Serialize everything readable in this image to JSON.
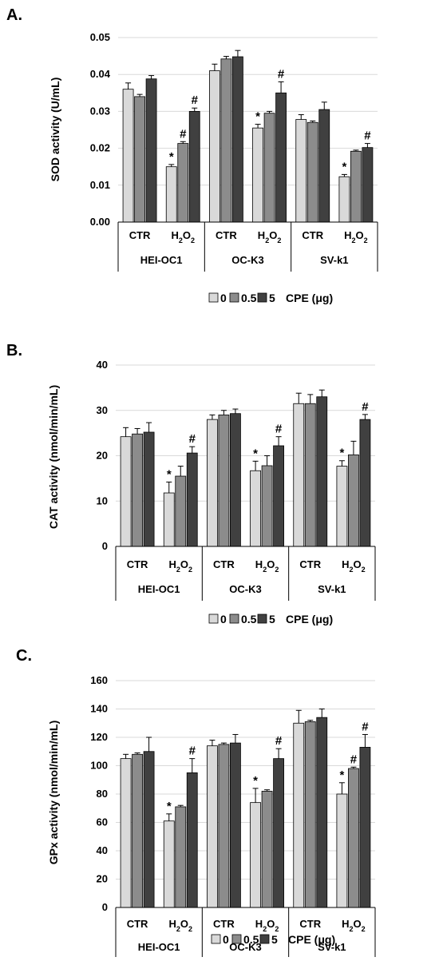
{
  "legend": {
    "entries": [
      "0",
      "0.5",
      "5"
    ],
    "unit": "CPE (μg)",
    "colors": [
      "#d9d9d9",
      "#8c8c8c",
      "#404040"
    ]
  },
  "chart_data": [
    {
      "type": "bar",
      "panel_label": "A.",
      "ylabel": "SOD activity (U/mL)",
      "ylim": [
        0,
        0.05
      ],
      "yticks": [
        "0.00",
        "0.01",
        "0.02",
        "0.03",
        "0.04",
        "0.05"
      ],
      "groups": [
        "HEI-OC1",
        "OC-K3",
        "SV-k1"
      ],
      "conditions": [
        "CTR",
        "H2O2"
      ],
      "series": [
        {
          "values": [
            0.036,
            0.015,
            0.041,
            0.0255,
            0.0278,
            0.0123
          ],
          "errors": [
            0.0017,
            0.0006,
            0.0018,
            0.001,
            0.0013,
            0.0006
          ]
        },
        {
          "values": [
            0.034,
            0.0213,
            0.0442,
            0.0295,
            0.027,
            0.0192
          ],
          "errors": [
            0.0006,
            0.0005,
            0.0007,
            0.0005,
            0.0004,
            0.0003
          ]
        },
        {
          "values": [
            0.0388,
            0.03,
            0.0448,
            0.035,
            0.0305,
            0.0202
          ],
          "errors": [
            0.0009,
            0.0009,
            0.0017,
            0.003,
            0.002,
            0.0011
          ]
        }
      ],
      "annotations": [
        {
          "series": 0,
          "index": 1,
          "text": "*"
        },
        {
          "series": 1,
          "index": 1,
          "text": "#"
        },
        {
          "series": 2,
          "index": 1,
          "text": "#"
        },
        {
          "series": 0,
          "index": 3,
          "text": "*"
        },
        {
          "series": 2,
          "index": 3,
          "text": "#"
        },
        {
          "series": 0,
          "index": 5,
          "text": "*"
        },
        {
          "series": 2,
          "index": 5,
          "text": "#"
        }
      ]
    },
    {
      "type": "bar",
      "panel_label": "B.",
      "ylabel": "CAT activity (nmol/min/mL)",
      "ylim": [
        0,
        40
      ],
      "yticks": [
        "0",
        "10",
        "20",
        "30",
        "40"
      ],
      "groups": [
        "HEI-OC1",
        "OC-K3",
        "SV-k1"
      ],
      "conditions": [
        "CTR",
        "H2O2"
      ],
      "series": [
        {
          "values": [
            24.2,
            11.8,
            28.0,
            16.7,
            31.5,
            17.7
          ],
          "errors": [
            2.0,
            2.4,
            1.0,
            2.1,
            2.3,
            1.2
          ]
        },
        {
          "values": [
            24.8,
            15.5,
            29.0,
            17.8,
            31.5,
            20.2
          ],
          "errors": [
            1.2,
            2.2,
            1.0,
            2.2,
            2.0,
            3.0
          ]
        },
        {
          "values": [
            25.2,
            20.6,
            29.3,
            22.2,
            33.0,
            28.0
          ],
          "errors": [
            2.1,
            1.4,
            1.0,
            2.0,
            1.5,
            1.1
          ]
        }
      ],
      "annotations": [
        {
          "series": 0,
          "index": 1,
          "text": "*"
        },
        {
          "series": 2,
          "index": 1,
          "text": "#"
        },
        {
          "series": 0,
          "index": 3,
          "text": "*"
        },
        {
          "series": 2,
          "index": 3,
          "text": "#"
        },
        {
          "series": 0,
          "index": 5,
          "text": "*"
        },
        {
          "series": 2,
          "index": 5,
          "text": "#"
        }
      ]
    },
    {
      "type": "bar",
      "panel_label": "C.",
      "ylabel": "GPx activity (nmol/min/mL)",
      "ylim": [
        0,
        160
      ],
      "yticks": [
        "0",
        "20",
        "40",
        "60",
        "80",
        "100",
        "120",
        "140",
        "160"
      ],
      "groups": [
        "HEI-OC1",
        "OC-K3",
        "SV-k1"
      ],
      "conditions": [
        "CTR",
        "H2O2"
      ],
      "series": [
        {
          "values": [
            105,
            61,
            114,
            74,
            130,
            80
          ],
          "errors": [
            3,
            5,
            4,
            10,
            9,
            8
          ]
        },
        {
          "values": [
            108,
            71,
            115,
            82,
            131,
            98
          ],
          "errors": [
            1,
            1,
            1,
            1,
            1,
            1
          ]
        },
        {
          "values": [
            110,
            95,
            116,
            105,
            134,
            113
          ],
          "errors": [
            10,
            10,
            6,
            7,
            6,
            9
          ]
        }
      ],
      "annotations": [
        {
          "series": 0,
          "index": 1,
          "text": "*"
        },
        {
          "series": 2,
          "index": 1,
          "text": "#"
        },
        {
          "series": 0,
          "index": 3,
          "text": "*"
        },
        {
          "series": 2,
          "index": 3,
          "text": "#"
        },
        {
          "series": 0,
          "index": 5,
          "text": "*"
        },
        {
          "series": 1,
          "index": 5,
          "text": "#"
        },
        {
          "series": 2,
          "index": 5,
          "text": "#"
        }
      ]
    }
  ]
}
